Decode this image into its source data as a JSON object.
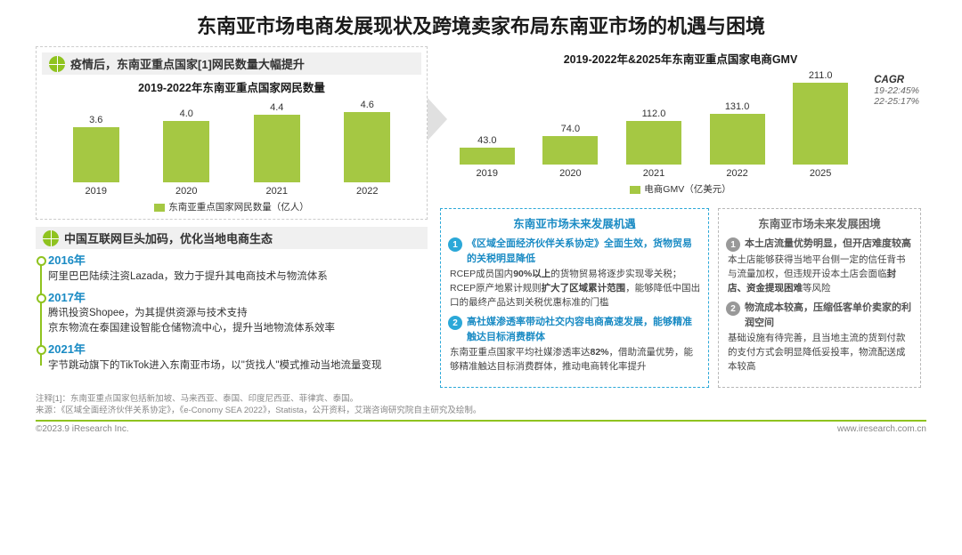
{
  "title": "东南亚市场电商发展现状及跨境卖家布局东南亚市场的机遇与困境",
  "section1": {
    "header": "疫情后，东南亚重点国家[1]网民数量大幅提升",
    "chart_title": "2019-2022年东南亚重点国家网民数量",
    "type": "bar",
    "categories": [
      "2019",
      "2020",
      "2021",
      "2022"
    ],
    "values": [
      3.6,
      4.0,
      4.4,
      4.6
    ],
    "bar_color": "#a5c843",
    "ymax": 5.0,
    "legend": "东南亚重点国家网民数量（亿人）",
    "label_fontsize": 11,
    "value_fontsize": 11
  },
  "section2": {
    "header": "中国互联网巨头加码，优化当地电商生态",
    "items": [
      {
        "year": "2016年",
        "text": "阿里巴巴陆续注资Lazada，致力于提升其电商技术与物流体系"
      },
      {
        "year": "2017年",
        "text": "腾讯投资Shopee，为其提供资源与技术支持\n京东物流在泰国建设智能仓储物流中心，提升当地物流体系效率"
      },
      {
        "year": "2021年",
        "text": "字节跳动旗下的TikTok进入东南亚市场，以\"货找人\"模式推动当地流量变现"
      }
    ]
  },
  "chart2": {
    "title": "2019-2022年&2025年东南亚重点国家电商GMV",
    "type": "bar",
    "categories": [
      "2019",
      "2020",
      "2021",
      "2022",
      "2025"
    ],
    "values": [
      43.0,
      74.0,
      112.0,
      131.0,
      211.0
    ],
    "bar_color": "#a5c843",
    "ymax": 220,
    "legend": "电商GMV（亿美元）",
    "cagr_label": "CAGR",
    "cagr_1": "19-22:45%",
    "cagr_2": "22-25:17%"
  },
  "opportunities": {
    "title": "东南亚市场未来发展机遇",
    "border_color": "#2ba8d8",
    "points": [
      {
        "n": "1",
        "head": "《区域全面经济伙伴关系协定》全面生效，货物贸易的关税明显降低",
        "body": "RCEP成员国内90%以上的货物贸易将逐步实现零关税；RCEP原产地累计规则扩大了区域累计范围，能够降低中国出口的最终产品达到关税优惠标准的门槛"
      },
      {
        "n": "2",
        "head": "高社媒渗透率带动社交内容电商高速发展，能够精准触达目标消费群体",
        "body": "东南亚重点国家平均社媒渗透率达82%，借助流量优势，能够精准触达目标消费群体，推动电商转化率提升"
      }
    ]
  },
  "challenges": {
    "title": "东南亚市场未来发展困境",
    "border_color": "#b8b8b8",
    "points": [
      {
        "n": "1",
        "head": "本土店流量优势明显，但开店难度较高",
        "body": "本土店能够获得当地平台侧一定的信任背书与流量加权，但违规开设本土店会面临封店、资金提现困难等风险"
      },
      {
        "n": "2",
        "head": "物流成本较高，压缩低客单价卖家的利润空间",
        "body": "基础设施有待完善，且当地主流的货到付款的支付方式会明显降低妥投率，物流配送成本较高"
      }
    ]
  },
  "footnotes": {
    "note1": "注释[1]：东南亚重点国家包括新加坡、马来西亚、泰国、印度尼西亚、菲律宾、泰国。",
    "source": "来源：《区域全面经济伙伴关系协定》，《e-Conomy SEA 2022》，Statista，公开资料，艾瑞咨询研究院自主研究及绘制。"
  },
  "footer": {
    "copyright": "©2023.9 iResearch Inc.",
    "url": "www.iresearch.com.cn"
  },
  "colors": {
    "accent_green": "#8fc31f",
    "bar_green": "#a5c843",
    "accent_blue": "#1a8bc4",
    "border_blue": "#2ba8d8",
    "border_grey": "#b8b8b8",
    "text": "#333333",
    "muted": "#888888"
  }
}
